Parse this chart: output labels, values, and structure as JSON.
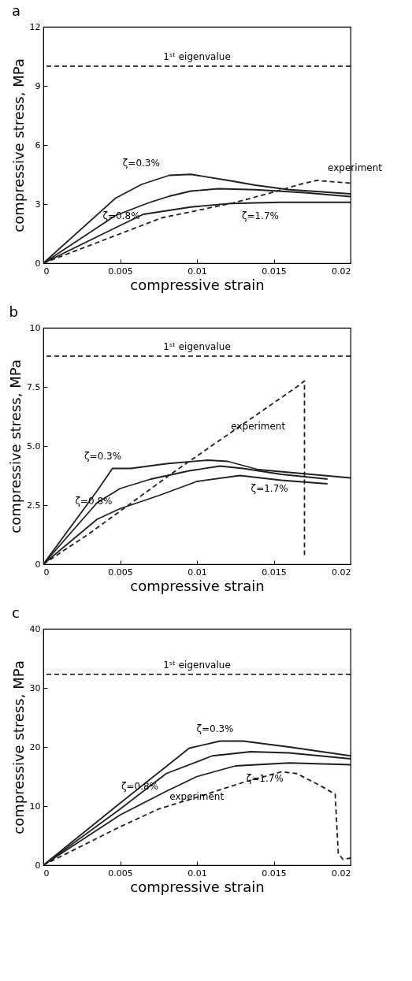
{
  "chart_data": [
    {
      "type": "line",
      "title": "a",
      "xlabel": "compressive strain",
      "ylabel": "compressive stress, MPa",
      "xlim": [
        0,
        0.02
      ],
      "xticks": [
        0,
        0.005,
        0.01,
        0.015,
        0.02
      ],
      "ylim": [
        0,
        12
      ],
      "yticks": [
        0,
        3,
        6,
        9,
        12
      ],
      "grid": false,
      "legend": false,
      "series": [
        {
          "color": "#231f20",
          "line_style": "solid",
          "x": [
            0,
            0.0047,
            0.0064,
            0.0082,
            0.0096,
            0.0122,
            0.0138,
            0.0159,
            0.02
          ],
          "values": [
            0,
            3.3,
            4.0,
            4.46,
            4.51,
            4.18,
            3.96,
            3.74,
            3.52
          ]
        },
        {
          "color": "#231f20",
          "line_style": "solid",
          "x": [
            0,
            0.0047,
            0.0068,
            0.0082,
            0.0096,
            0.0114,
            0.0138,
            0.017,
            0.02
          ],
          "values": [
            0,
            2.42,
            3.05,
            3.4,
            3.66,
            3.78,
            3.73,
            3.58,
            3.38
          ]
        },
        {
          "color": "#231f20",
          "line_style": "solid",
          "x": [
            0,
            0.0047,
            0.0065,
            0.0096,
            0.0122,
            0.0154,
            0.02
          ],
          "values": [
            0,
            1.8,
            2.48,
            2.85,
            3.03,
            3.09,
            3.09
          ]
        },
        {
          "color": "#231f20",
          "line_style": "dashed",
          "x": [
            0,
            0.0077,
            0.0122,
            0.0145,
            0.0167,
            0.0178,
            0.02
          ],
          "values": [
            0,
            2.3,
            3.03,
            3.5,
            4.0,
            4.2,
            4.06
          ]
        }
      ],
      "ref_lines": [
        {
          "axis": "y",
          "value": 10,
          "label": "1ˢᵗ eigenvalue",
          "line_style": "dashed"
        }
      ],
      "annotations": [
        {
          "text": "ζ=0.3%",
          "x": 0.0082,
          "y": 4.46
        },
        {
          "text": "ζ=0.8%",
          "x": 0.0068,
          "y": 3.05
        },
        {
          "text": "ζ=1.7%",
          "x": 0.0122,
          "y": 3.03
        },
        {
          "text": "experiment",
          "x": 0.0178,
          "y": 4.2
        }
      ]
    },
    {
      "type": "line",
      "title": "b",
      "xlabel": "compressive strain",
      "ylabel": "compressive stress, MPa",
      "xlim": [
        0,
        0.02
      ],
      "xticks": [
        0,
        0.005,
        0.01,
        0.015,
        0.02
      ],
      "ylim": [
        0,
        10
      ],
      "yticks": [
        0,
        2.5,
        {
          "value": 5,
          "label": "5.0"
        },
        7.5,
        10
      ],
      "grid": false,
      "legend": false,
      "series": [
        {
          "color": "#231f20",
          "line_style": "solid",
          "x": [
            0,
            0.0035,
            0.0045,
            0.0057,
            0.008,
            0.0107,
            0.012,
            0.014,
            0.02
          ],
          "values": [
            0,
            3.1,
            4.05,
            4.05,
            4.25,
            4.4,
            4.35,
            4.0,
            3.65
          ]
        },
        {
          "color": "#231f20",
          "line_style": "solid",
          "x": [
            0,
            0.0035,
            0.005,
            0.007,
            0.0095,
            0.0115,
            0.013,
            0.0155,
            0.0185
          ],
          "values": [
            0,
            2.6,
            3.2,
            3.6,
            3.95,
            4.15,
            4.05,
            3.8,
            3.6
          ]
        },
        {
          "color": "#231f20",
          "line_style": "solid",
          "x": [
            0,
            0.0035,
            0.005,
            0.0075,
            0.01,
            0.0128,
            0.0155,
            0.0185
          ],
          "values": [
            0,
            1.9,
            2.35,
            2.9,
            3.5,
            3.75,
            3.55,
            3.4
          ]
        },
        {
          "color": "#231f20",
          "line_style": "dashed",
          "x": [
            0,
            0.003,
            0.0085,
            0.0165,
            0.017,
            0.017
          ],
          "values": [
            0,
            1.3,
            3.9,
            7.5,
            7.75,
            0.3
          ]
        }
      ],
      "ref_lines": [
        {
          "axis": "y",
          "value": 8.8,
          "label": "1ˢᵗ eigenvalue",
          "line_style": "dashed"
        }
      ],
      "annotations": [
        {
          "text": "ζ=0.3%",
          "x": 0.0057,
          "y": 4.05
        },
        {
          "text": "ζ=0.8%",
          "x": 0.005,
          "y": 3.2
        },
        {
          "text": "ζ=1.7%",
          "x": 0.0128,
          "y": 3.75
        },
        {
          "text": "experiment",
          "x": 0.0115,
          "y": 5.3
        }
      ]
    },
    {
      "type": "line",
      "title": "c",
      "xlabel": "compressive strain",
      "ylabel": "compressive stress, MPa",
      "xlim": [
        0,
        0.02
      ],
      "xticks": [
        0,
        0.005,
        0.01,
        0.015,
        0.02
      ],
      "ylim": [
        0,
        40
      ],
      "yticks": [
        0,
        10,
        20,
        30,
        40
      ],
      "grid": false,
      "legend": false,
      "series": [
        {
          "color": "#231f20",
          "line_style": "solid",
          "x": [
            0,
            0.005,
            0.0095,
            0.0115,
            0.013,
            0.016,
            0.02
          ],
          "values": [
            0,
            10.5,
            19.8,
            21,
            21,
            20,
            18.5
          ]
        },
        {
          "color": "#231f20",
          "line_style": "solid",
          "x": [
            0,
            0.005,
            0.008,
            0.011,
            0.0135,
            0.016,
            0.02
          ],
          "values": [
            0,
            9.5,
            15.5,
            18.5,
            19.2,
            19,
            18
          ]
        },
        {
          "color": "#231f20",
          "line_style": "solid",
          "x": [
            0,
            0.005,
            0.008,
            0.01,
            0.0125,
            0.016,
            0.02
          ],
          "values": [
            0,
            8.5,
            12.5,
            15,
            16.8,
            17.3,
            17
          ]
        },
        {
          "color": "#231f20",
          "line_style": "dashed",
          "x": [
            0,
            0.005,
            0.0075,
            0.01,
            0.013,
            0.0155,
            0.0165,
            0.018,
            0.019,
            0.0192,
            0.0195,
            0.02
          ],
          "values": [
            0,
            6.5,
            9.5,
            11.5,
            14,
            15.8,
            15.5,
            13.5,
            12,
            2,
            1,
            1.2
          ]
        }
      ],
      "ref_lines": [
        {
          "axis": "y",
          "value": 32.3,
          "label": "1ˢᵗ eigenvalue",
          "line_style": "dashed"
        }
      ],
      "annotations": [
        {
          "text": "ζ=0.3%",
          "x": 0.013,
          "y": 21
        },
        {
          "text": "ζ=0.8%",
          "x": 0.008,
          "y": 15.5
        },
        {
          "text": "ζ=1.7%",
          "x": 0.0125,
          "y": 16.8
        },
        {
          "text": "experiment",
          "x": 0.0075,
          "y": 9.5
        }
      ]
    }
  ]
}
